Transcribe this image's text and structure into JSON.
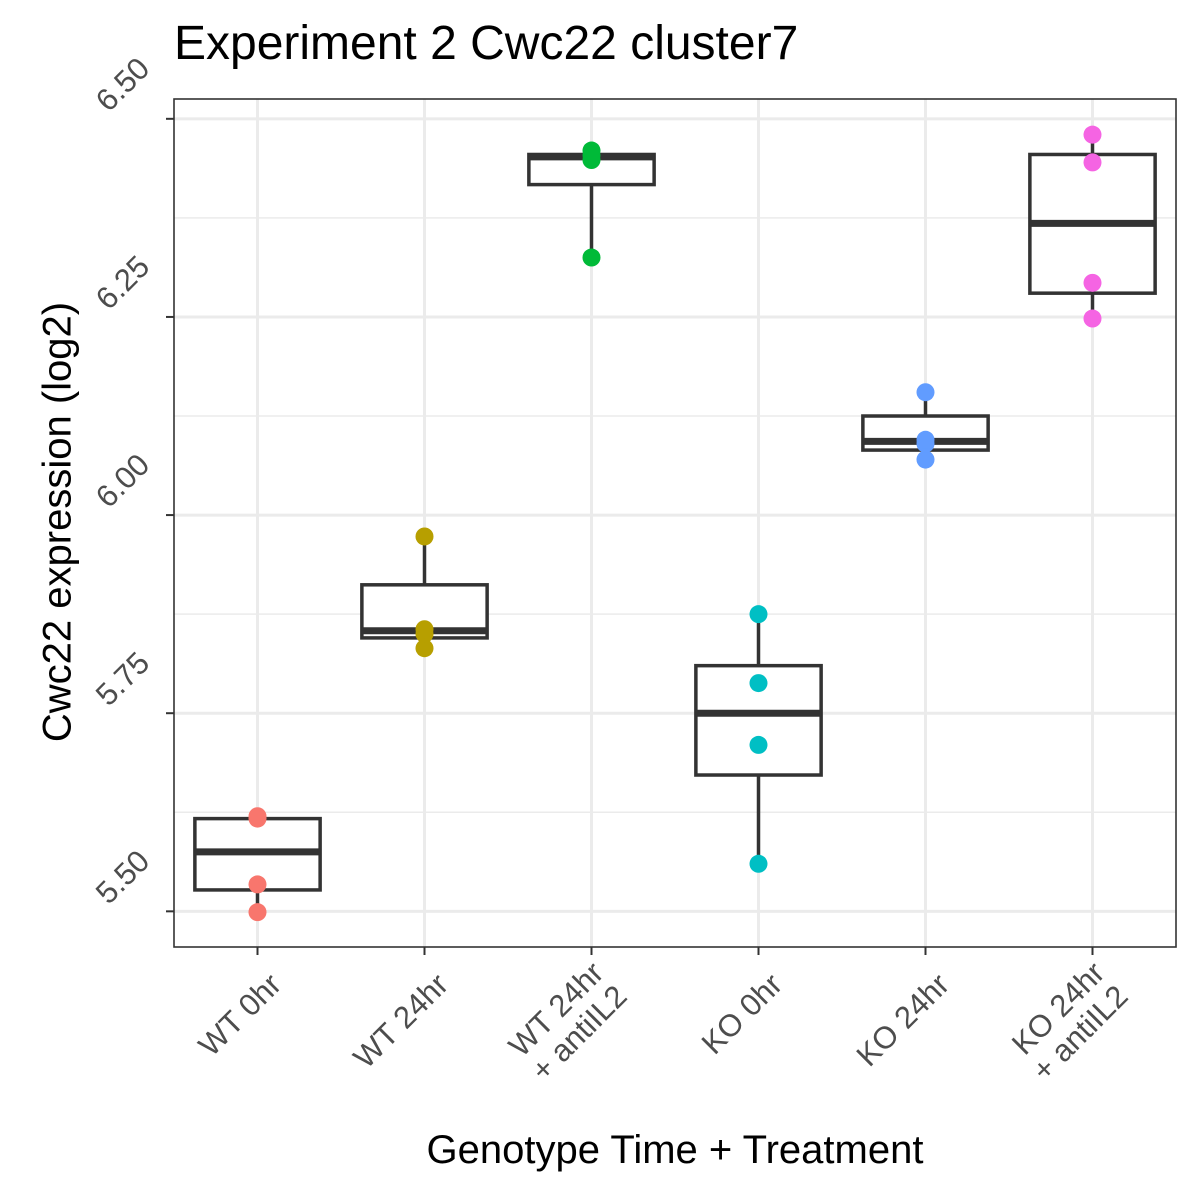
{
  "chart_data": {
    "type": "box",
    "title": "Experiment 2 Cwc22 cluster7",
    "xlabel": "Genotype Time + Treatment",
    "ylabel": "Cwc22 expression (log2)",
    "ylim": [
      5.455,
      6.525
    ],
    "yticks": [
      5.5,
      5.75,
      6.0,
      6.25,
      6.5
    ],
    "ytick_labels": [
      "5.50",
      "5.75",
      "6.00",
      "6.25",
      "6.50"
    ],
    "grid": true,
    "legend": "none",
    "categories": [
      "WT 0hr",
      "WT 24hr",
      "WT 24hr + antiIL2",
      "KO 0hr",
      "KO 24hr",
      "KO 24hr + antiIL2"
    ],
    "category_label_lines": [
      [
        "WT 0hr"
      ],
      [
        "WT 24hr"
      ],
      [
        "WT 24hr",
        "+ antiIL2"
      ],
      [
        "KO 0hr"
      ],
      [
        "KO 24hr"
      ],
      [
        "KO 24hr",
        "+ antiIL2"
      ]
    ],
    "colors": [
      "#F8766D",
      "#B79F00",
      "#00BA38",
      "#00BFC4",
      "#619CFF",
      "#F564E3"
    ],
    "boxes": [
      {
        "min": 5.499,
        "q1": 5.527,
        "median": 5.575,
        "q3": 5.617,
        "max": 5.62
      },
      {
        "min": 5.832,
        "q1": 5.845,
        "median": 5.854,
        "q3": 5.912,
        "max": 5.973
      },
      {
        "min": 6.325,
        "q1": 6.417,
        "median": 6.452,
        "q3": 6.455,
        "max": 6.46
      },
      {
        "min": 5.56,
        "q1": 5.672,
        "median": 5.75,
        "q3": 5.81,
        "max": 5.875
      },
      {
        "min": 6.07,
        "q1": 6.082,
        "median": 6.093,
        "q3": 6.125,
        "max": 6.155
      },
      {
        "min": 6.248,
        "q1": 6.28,
        "median": 6.368,
        "q3": 6.455,
        "max": 6.48
      }
    ],
    "points": [
      [
        5.499,
        5.534,
        5.617,
        5.62
      ],
      [
        5.832,
        5.85,
        5.856,
        5.973
      ],
      [
        6.325,
        6.448,
        6.454,
        6.46
      ],
      [
        5.56,
        5.71,
        5.788,
        5.875
      ],
      [
        6.07,
        6.09,
        6.095,
        6.155
      ],
      [
        6.248,
        6.293,
        6.445,
        6.48
      ]
    ]
  }
}
